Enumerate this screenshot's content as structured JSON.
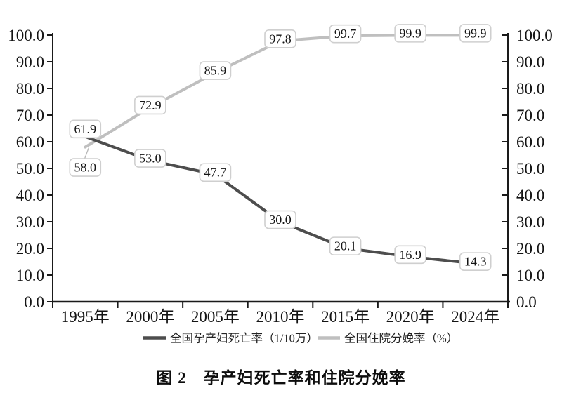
{
  "chart_data": {
    "type": "line",
    "caption": "图 2　孕产妇死亡率和住院分娩率",
    "categories": [
      "1995年",
      "2000年",
      "2005年",
      "2010年",
      "2015年",
      "2020年",
      "2024年"
    ],
    "series": [
      {
        "name": "全国孕产妇死亡率（1/10万）",
        "color": "#4d4d4d",
        "values": [
          61.9,
          53.0,
          47.7,
          30.0,
          20.1,
          16.9,
          14.3
        ],
        "label_offsets": {
          "0": [
            0,
            -11
          ]
        }
      },
      {
        "name": "全国住院分娩率（%）",
        "color": "#bfbfbf",
        "values": [
          58.0,
          72.9,
          85.9,
          97.8,
          99.7,
          99.9,
          99.9
        ],
        "label_offsets": {
          "0": [
            0,
            29
          ]
        },
        "leader_points": [
          0
        ]
      }
    ],
    "y_axis": {
      "min": 0,
      "max": 100,
      "step": 10,
      "decimals": 1,
      "sides": [
        "left",
        "right"
      ]
    },
    "xlabel": "",
    "ylabel": "",
    "ylim": [
      0,
      100
    ],
    "grid": false,
    "legend_position": "bottom",
    "data_label_box_color": "#cfcfcf",
    "axis_color": "#1a1a1a"
  }
}
